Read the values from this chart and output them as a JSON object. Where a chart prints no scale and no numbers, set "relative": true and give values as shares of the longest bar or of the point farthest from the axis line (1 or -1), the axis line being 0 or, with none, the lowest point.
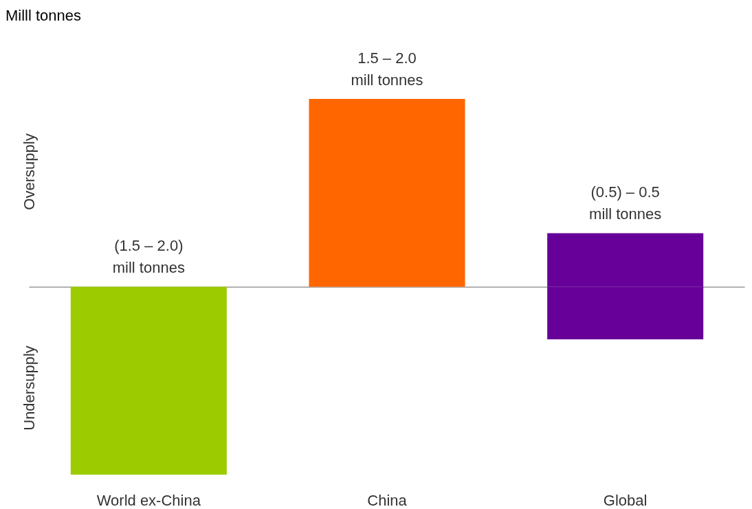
{
  "chart_data": {
    "type": "bar",
    "relative": true,
    "stacked": true,
    "categories": [
      "World ex-China",
      "China",
      "Global"
    ],
    "series": [
      {
        "colors": [
          "#9ccc00",
          "#ff6600",
          "#660099"
        ],
        "values": [
          -1,
          1,
          0.285
        ]
      },
      {
        "color": "#660099",
        "values": [
          null,
          null,
          -0.28
        ]
      }
    ],
    "annotations": [
      "Milll tonnes",
      "Oversupply",
      "Undersupply",
      {
        "text": "(1.5 – 2.0)\nmill tonnes",
        "x": "World ex-China",
        "y": 0
      },
      {
        "text": "1.5 – 2.0\nmill tonnes",
        "x": "China",
        "y": 1
      },
      {
        "text": "(0.5) – 0.5\nmill tonnes",
        "x": "Global",
        "y": 0.285
      }
    ]
  }
}
